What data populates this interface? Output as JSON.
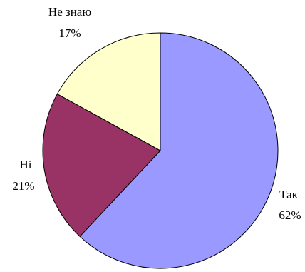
{
  "chart_data": {
    "type": "pie",
    "title": "",
    "labels": [
      "Так",
      "Ні",
      "Не знаю"
    ],
    "values": [
      62,
      21,
      17
    ],
    "value_labels": [
      "62%",
      "21%",
      "17%"
    ],
    "colors": [
      "#9999FF",
      "#993366",
      "#FFFFCC"
    ],
    "start": "top, clockwise",
    "legend": "none"
  }
}
